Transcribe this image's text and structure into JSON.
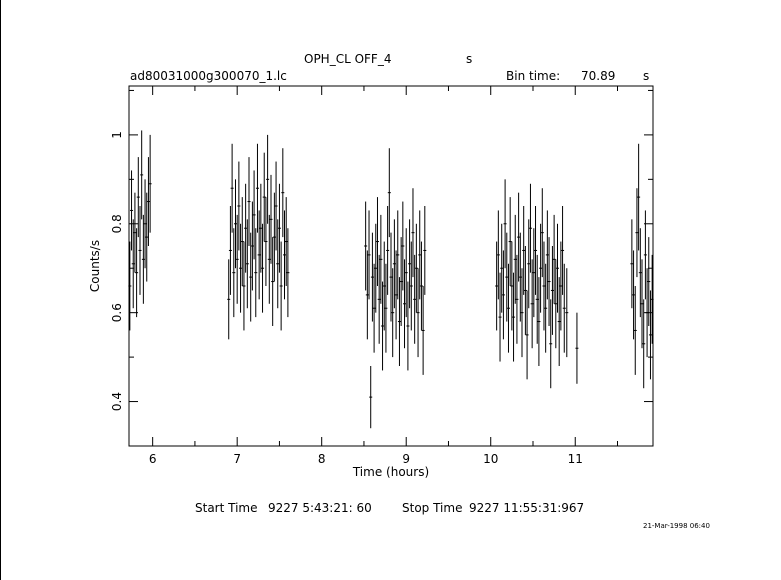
{
  "header": {
    "title": "OPH_CL OFF_4",
    "title_unit": "s",
    "file_name": "ad80031000g300070_1.lc",
    "bin_time_label": "Bin time:",
    "bin_time_value": "70.89",
    "bin_time_unit": "s"
  },
  "footer": {
    "start_label": "Start Time",
    "start_value": "9227  5:43:21: 60",
    "stop_label": "Stop Time",
    "stop_value": "9227 11:55:31:967",
    "timestamp": "21-Mar-1998 06:40"
  },
  "chart_data": {
    "type": "scatter",
    "xlabel": "Time (hours)",
    "ylabel": "Counts/s",
    "xlim": [
      5.72,
      11.92
    ],
    "ylim": [
      0.3,
      1.11
    ],
    "x_ticks": [
      6,
      7,
      8,
      9,
      10,
      11
    ],
    "x_tick_labels": [
      "6",
      "7",
      "8",
      "9",
      "10",
      "11"
    ],
    "y_ticks": [
      0.4,
      0.6,
      0.8,
      1.0
    ],
    "y_tick_labels": [
      "0.4",
      "0.6",
      "0.8",
      "1"
    ],
    "grid": false,
    "colors": {
      "axes": "#000000",
      "points": "#000000"
    },
    "series": [
      {
        "points": [
          [
            5.73,
            0.66,
            0.1
          ],
          [
            5.75,
            0.83,
            0.09
          ],
          [
            5.77,
            0.71,
            0.1
          ],
          [
            5.79,
            0.78,
            0.09
          ],
          [
            5.81,
            0.69,
            0.1
          ],
          [
            5.83,
            0.86,
            0.09
          ],
          [
            5.85,
            0.74,
            0.1
          ],
          [
            5.87,
            0.91,
            0.1
          ],
          [
            5.89,
            0.72,
            0.1
          ],
          [
            5.91,
            0.8,
            0.1
          ],
          [
            5.93,
            0.77,
            0.1
          ],
          [
            5.95,
            0.85,
            0.1
          ],
          [
            5.97,
            0.89,
            0.11
          ],
          [
            6.9,
            0.63,
            0.09
          ],
          [
            6.92,
            0.74,
            0.1
          ],
          [
            6.94,
            0.88,
            0.1
          ],
          [
            6.96,
            0.69,
            0.1
          ],
          [
            6.98,
            0.8,
            0.1
          ],
          [
            7.0,
            0.72,
            0.1
          ],
          [
            7.02,
            0.84,
            0.1
          ],
          [
            7.04,
            0.7,
            0.1
          ],
          [
            7.06,
            0.76,
            0.1
          ],
          [
            7.08,
            0.66,
            0.1
          ],
          [
            7.1,
            0.79,
            0.1
          ],
          [
            7.12,
            0.71,
            0.1
          ],
          [
            7.14,
            0.85,
            0.1
          ],
          [
            7.16,
            0.68,
            0.1
          ],
          [
            7.18,
            0.75,
            0.1
          ],
          [
            7.2,
            0.82,
            0.1
          ],
          [
            7.22,
            0.69,
            0.1
          ],
          [
            7.24,
            0.88,
            0.1
          ],
          [
            7.26,
            0.73,
            0.1
          ],
          [
            7.28,
            0.79,
            0.1
          ],
          [
            7.3,
            0.7,
            0.1
          ],
          [
            7.32,
            0.86,
            0.1
          ],
          [
            7.34,
            0.76,
            0.1
          ],
          [
            7.36,
            0.9,
            0.1
          ],
          [
            7.38,
            0.72,
            0.1
          ],
          [
            7.4,
            0.81,
            0.1
          ],
          [
            7.42,
            0.67,
            0.1
          ],
          [
            7.44,
            0.77,
            0.1
          ],
          [
            7.46,
            0.84,
            0.1
          ],
          [
            7.48,
            0.71,
            0.1
          ],
          [
            7.5,
            0.79,
            0.1
          ],
          [
            7.52,
            0.66,
            0.1
          ],
          [
            7.54,
            0.87,
            0.1
          ],
          [
            7.56,
            0.73,
            0.1
          ],
          [
            7.58,
            0.76,
            0.1
          ],
          [
            7.6,
            0.69,
            0.1
          ],
          [
            8.52,
            0.75,
            0.1
          ],
          [
            8.54,
            0.64,
            0.1
          ],
          [
            8.56,
            0.73,
            0.1
          ],
          [
            8.58,
            0.41,
            0.07
          ],
          [
            8.6,
            0.68,
            0.1
          ],
          [
            8.62,
            0.61,
            0.1
          ],
          [
            8.64,
            0.7,
            0.1
          ],
          [
            8.66,
            0.76,
            0.1
          ],
          [
            8.68,
            0.63,
            0.1
          ],
          [
            8.7,
            0.72,
            0.1
          ],
          [
            8.72,
            0.57,
            0.1
          ],
          [
            8.74,
            0.66,
            0.1
          ],
          [
            8.76,
            0.61,
            0.1
          ],
          [
            8.78,
            0.74,
            0.1
          ],
          [
            8.8,
            0.87,
            0.1
          ],
          [
            8.82,
            0.68,
            0.1
          ],
          [
            8.84,
            0.6,
            0.1
          ],
          [
            8.86,
            0.71,
            0.1
          ],
          [
            8.88,
            0.64,
            0.1
          ],
          [
            8.9,
            0.73,
            0.1
          ],
          [
            8.92,
            0.58,
            0.1
          ],
          [
            8.94,
            0.67,
            0.1
          ],
          [
            8.96,
            0.75,
            0.1
          ],
          [
            8.98,
            0.62,
            0.1
          ],
          [
            9.0,
            0.69,
            0.1
          ],
          [
            9.02,
            0.57,
            0.1
          ],
          [
            9.04,
            0.71,
            0.1
          ],
          [
            9.06,
            0.66,
            0.1
          ],
          [
            9.08,
            0.78,
            0.1
          ],
          [
            9.1,
            0.63,
            0.1
          ],
          [
            9.12,
            0.7,
            0.1
          ],
          [
            9.14,
            0.6,
            0.1
          ],
          [
            9.16,
            0.73,
            0.1
          ],
          [
            9.18,
            0.66,
            0.1
          ],
          [
            9.2,
            0.56,
            0.1
          ],
          [
            9.22,
            0.74,
            0.1
          ],
          [
            10.07,
            0.66,
            0.1
          ],
          [
            10.09,
            0.73,
            0.1
          ],
          [
            10.11,
            0.59,
            0.1
          ],
          [
            10.13,
            0.7,
            0.1
          ],
          [
            10.15,
            0.64,
            0.1
          ],
          [
            10.17,
            0.8,
            0.1
          ],
          [
            10.19,
            0.68,
            0.1
          ],
          [
            10.21,
            0.61,
            0.1
          ],
          [
            10.23,
            0.76,
            0.1
          ],
          [
            10.25,
            0.66,
            0.1
          ],
          [
            10.27,
            0.59,
            0.1
          ],
          [
            10.29,
            0.72,
            0.1
          ],
          [
            10.31,
            0.63,
            0.1
          ],
          [
            10.33,
            0.77,
            0.1
          ],
          [
            10.35,
            0.68,
            0.1
          ],
          [
            10.37,
            0.6,
            0.1
          ],
          [
            10.39,
            0.74,
            0.1
          ],
          [
            10.41,
            0.65,
            0.1
          ],
          [
            10.43,
            0.55,
            0.1
          ],
          [
            10.45,
            0.71,
            0.1
          ],
          [
            10.47,
            0.79,
            0.1
          ],
          [
            10.49,
            0.62,
            0.1
          ],
          [
            10.51,
            0.69,
            0.1
          ],
          [
            10.53,
            0.74,
            0.1
          ],
          [
            10.55,
            0.63,
            0.1
          ],
          [
            10.57,
            0.58,
            0.1
          ],
          [
            10.59,
            0.7,
            0.1
          ],
          [
            10.61,
            0.78,
            0.1
          ],
          [
            10.63,
            0.66,
            0.1
          ],
          [
            10.65,
            0.61,
            0.1
          ],
          [
            10.67,
            0.73,
            0.1
          ],
          [
            10.69,
            0.67,
            0.1
          ],
          [
            10.71,
            0.53,
            0.1
          ],
          [
            10.73,
            0.65,
            0.1
          ],
          [
            10.75,
            0.72,
            0.1
          ],
          [
            10.77,
            0.62,
            0.1
          ],
          [
            10.79,
            0.7,
            0.1
          ],
          [
            10.81,
            0.58,
            0.1
          ],
          [
            10.83,
            0.66,
            0.1
          ],
          [
            10.85,
            0.74,
            0.1
          ],
          [
            10.87,
            0.61,
            0.1
          ],
          [
            10.9,
            0.6,
            0.1
          ],
          [
            11.02,
            0.52,
            0.08
          ],
          [
            11.67,
            0.71,
            0.1
          ],
          [
            11.69,
            0.64,
            0.1
          ],
          [
            11.71,
            0.56,
            0.1
          ],
          [
            11.73,
            0.78,
            0.1
          ],
          [
            11.75,
            0.86,
            0.12
          ],
          [
            11.77,
            0.69,
            0.1
          ],
          [
            11.79,
            0.62,
            0.1
          ],
          [
            11.81,
            0.53,
            0.1
          ],
          [
            11.83,
            0.73,
            0.1
          ],
          [
            11.85,
            0.6,
            0.1
          ],
          [
            11.87,
            0.67,
            0.1
          ],
          [
            11.89,
            0.55,
            0.1
          ],
          [
            11.91,
            0.63,
            0.1
          ]
        ]
      }
    ]
  }
}
